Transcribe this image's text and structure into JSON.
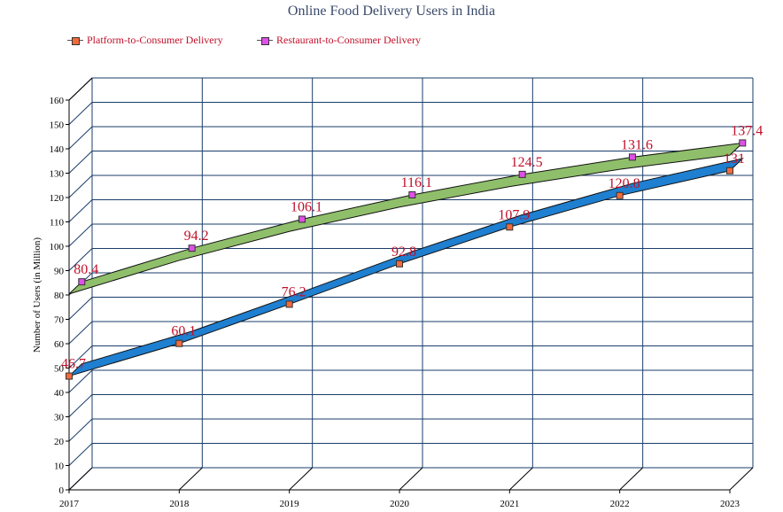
{
  "chart_data": {
    "type": "line",
    "title": "Online Food Delivery Users in India",
    "ylabel": "Number of Users (in Million)",
    "xlabel": "",
    "categories": [
      "2017",
      "2018",
      "2019",
      "2020",
      "2021",
      "2022",
      "2023"
    ],
    "ylim": [
      0,
      160
    ],
    "yticks": [
      0,
      10,
      20,
      30,
      40,
      50,
      60,
      70,
      80,
      90,
      100,
      110,
      120,
      130,
      140,
      150,
      160
    ],
    "ytick_labels": [
      "0",
      "10",
      "20",
      "30",
      "40",
      "50",
      "60",
      "70",
      "80",
      "90",
      "100",
      "110",
      "120",
      "130",
      "140",
      "150",
      "160"
    ],
    "grid": true,
    "legend_position": "top-left",
    "series": [
      {
        "name": "Platform-to-Consumer Delivery",
        "values": [
          46.7,
          60.1,
          76.2,
          92.8,
          107.9,
          120.8,
          131
        ],
        "labels": [
          "46.7",
          "60.1",
          "76.2",
          "92.8",
          "107.9",
          "120.8",
          "131"
        ],
        "color": "#1f7fd0",
        "marker_color": "#f26a3c"
      },
      {
        "name": "Restaurant-to-Consumer Delivery",
        "values": [
          80.4,
          94.2,
          106.1,
          116.1,
          124.5,
          131.6,
          137.4
        ],
        "labels": [
          "80.4",
          "94.2",
          "106.1",
          "116.1",
          "124.5",
          "131.6",
          "137.4"
        ],
        "color": "#8fbf6a",
        "marker_color": "#e050e8"
      }
    ],
    "colors": {
      "grid": "#1a3d6b",
      "label": "#c0102a",
      "title": "#3a4a6b"
    }
  }
}
